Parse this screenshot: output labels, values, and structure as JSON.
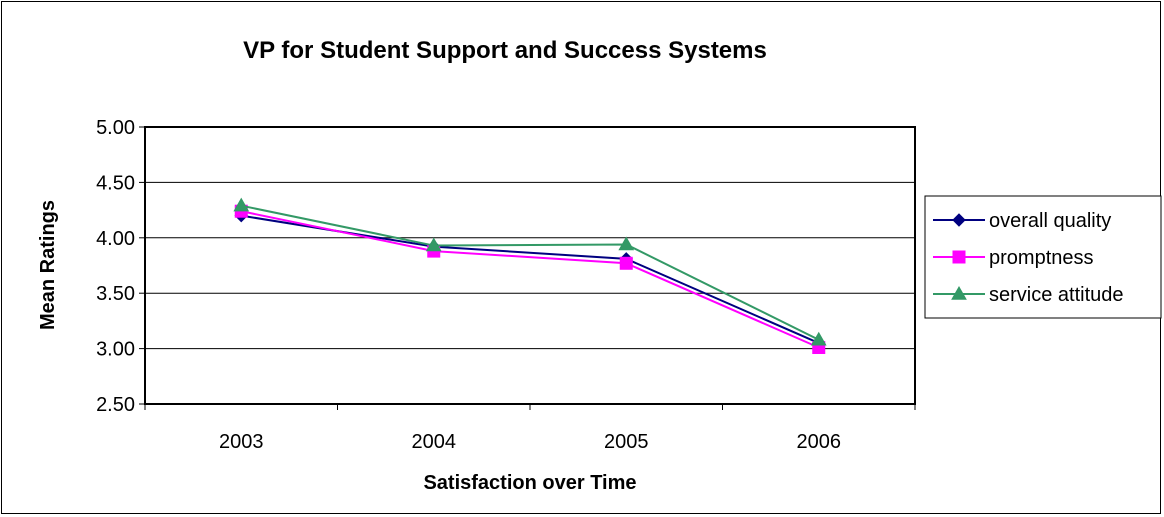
{
  "chart_data": {
    "type": "line",
    "title": "VP for Student Support and Success Systems",
    "xlabel": "Satisfaction over Time",
    "ylabel": "Mean Ratings",
    "categories": [
      "2003",
      "2004",
      "2005",
      "2006"
    ],
    "ylim": [
      2.5,
      5.0
    ],
    "yticks": [
      "2.50",
      "3.00",
      "3.50",
      "4.00",
      "4.50",
      "5.00"
    ],
    "grid": true,
    "legend_position": "right",
    "series": [
      {
        "name": "overall quality",
        "values": [
          4.2,
          3.92,
          3.81,
          3.05
        ],
        "color": "#000080",
        "marker": "diamond"
      },
      {
        "name": "promptness",
        "values": [
          4.24,
          3.88,
          3.77,
          3.01
        ],
        "color": "#FF00FF",
        "marker": "square"
      },
      {
        "name": "service attitude",
        "values": [
          4.29,
          3.93,
          3.94,
          3.08
        ],
        "color": "#339966",
        "marker": "triangle"
      }
    ]
  }
}
